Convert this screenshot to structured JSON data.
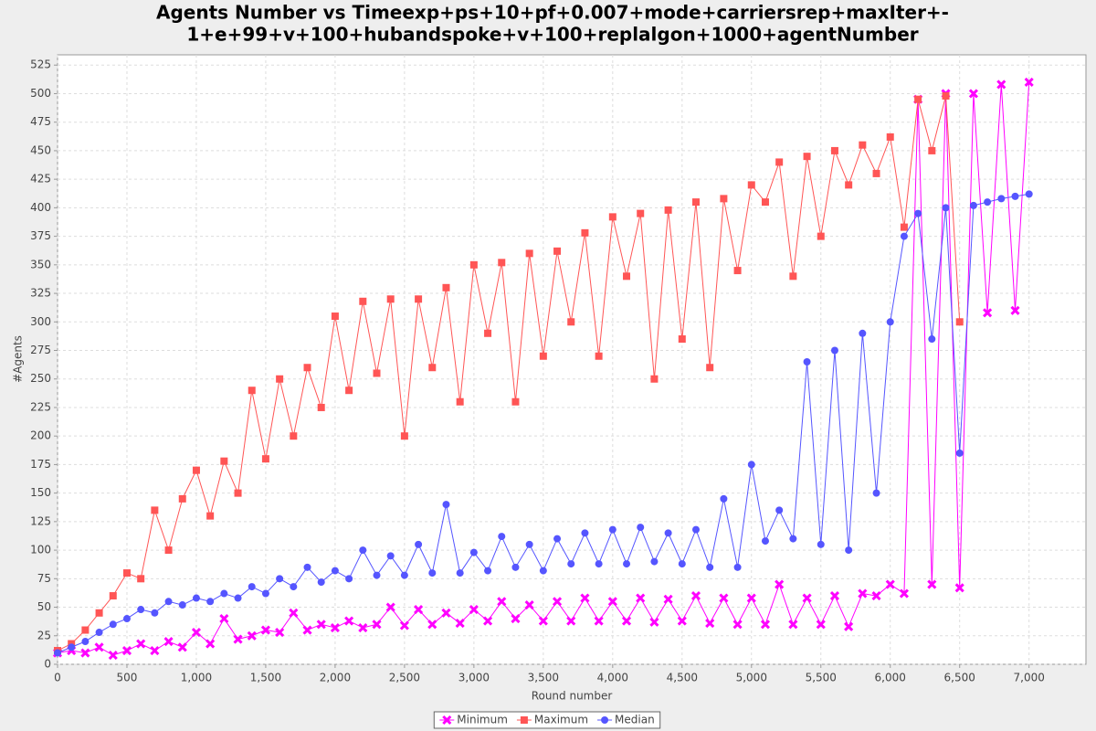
{
  "chart_data": {
    "type": "line",
    "title": [
      "Agents Number vs Timeexp+ps+10+pf+0.007+mode+carriersrep+maxIter+-",
      "1+e+99+v+100+hubandspoke+v+100+replalgon+1000+agentNumber"
    ],
    "x_label": "Round number",
    "y_label": "#Agents",
    "xlim": [
      0,
      7410
    ],
    "ylim": [
      0,
      534
    ],
    "xticks": [
      0,
      500,
      {
        "value": 1000,
        "label": "1,000"
      },
      {
        "value": 1500,
        "label": "1,500"
      },
      {
        "value": 2000,
        "label": "2,000"
      },
      {
        "value": 2500,
        "label": "2,500"
      },
      {
        "value": 3000,
        "label": "3,000"
      },
      {
        "value": 3500,
        "label": "3,500"
      },
      {
        "value": 4000,
        "label": "4,000"
      },
      {
        "value": 4500,
        "label": "4,500"
      },
      {
        "value": 5000,
        "label": "5,000"
      },
      {
        "value": 5500,
        "label": "5,500"
      },
      {
        "value": 6000,
        "label": "6,000"
      },
      {
        "value": 6500,
        "label": "6,500"
      },
      {
        "value": 7000,
        "label": "7,000"
      }
    ],
    "yticks": [
      0,
      25,
      50,
      75,
      100,
      125,
      150,
      175,
      200,
      225,
      250,
      275,
      300,
      325,
      350,
      375,
      400,
      425,
      450,
      475,
      500,
      525
    ],
    "grid": true,
    "legend": "bottom",
    "x": [
      0,
      100,
      200,
      300,
      400,
      500,
      600,
      700,
      800,
      900,
      1000,
      1100,
      1200,
      1300,
      1400,
      1500,
      1600,
      1700,
      1800,
      1900,
      2000,
      2100,
      2200,
      2300,
      2400,
      2500,
      2600,
      2700,
      2800,
      2900,
      3000,
      3100,
      3200,
      3300,
      3400,
      3500,
      3600,
      3700,
      3800,
      3900,
      4000,
      4100,
      4200,
      4300,
      4400,
      4500,
      4600,
      4700,
      4800,
      4900,
      5000,
      5100,
      5200,
      5300,
      5400,
      5500,
      5600,
      5700,
      5800,
      5900,
      6000,
      6100,
      6200,
      6300,
      6400,
      6500,
      6600,
      6700,
      6800,
      6900,
      7000
    ],
    "series": [
      {
        "name": "Minimum",
        "color": "#ff00ff",
        "marker": "cross",
        "values": [
          10,
          12,
          10,
          15,
          8,
          12,
          18,
          12,
          20,
          15,
          28,
          18,
          40,
          22,
          25,
          30,
          28,
          45,
          30,
          35,
          32,
          38,
          32,
          35,
          50,
          34,
          48,
          35,
          45,
          36,
          48,
          38,
          55,
          40,
          52,
          38,
          55,
          38,
          58,
          38,
          55,
          38,
          58,
          37,
          57,
          38,
          60,
          36,
          58,
          35,
          58,
          35,
          70,
          35,
          58,
          35,
          60,
          33,
          62,
          60,
          70,
          62,
          495,
          70,
          500,
          67,
          500,
          308,
          508,
          310,
          510
        ]
      },
      {
        "name": "Maximum",
        "color": "#ff5555",
        "marker": "square",
        "values": [
          12,
          18,
          30,
          45,
          60,
          80,
          75,
          135,
          100,
          145,
          170,
          130,
          178,
          150,
          240,
          180,
          250,
          200,
          260,
          225,
          305,
          240,
          318,
          255,
          320,
          200,
          320,
          260,
          330,
          230,
          350,
          290,
          352,
          230,
          360,
          270,
          362,
          300,
          378,
          270,
          392,
          340,
          395,
          250,
          398,
          285,
          405,
          260,
          408,
          345,
          420,
          405,
          440,
          340,
          445,
          375,
          450,
          420,
          455,
          430,
          462,
          383,
          495,
          450,
          498,
          300,
          null,
          null,
          null,
          null,
          null
        ]
      },
      {
        "name": "Median",
        "color": "#5555ff",
        "marker": "circle",
        "values": [
          10,
          15,
          20,
          28,
          35,
          40,
          48,
          45,
          55,
          52,
          58,
          55,
          62,
          58,
          68,
          62,
          75,
          68,
          85,
          72,
          82,
          75,
          100,
          78,
          95,
          78,
          105,
          80,
          140,
          80,
          98,
          82,
          112,
          85,
          105,
          82,
          110,
          88,
          115,
          88,
          118,
          88,
          120,
          90,
          115,
          88,
          118,
          85,
          145,
          85,
          175,
          108,
          135,
          110,
          265,
          105,
          275,
          100,
          290,
          150,
          300,
          375,
          395,
          285,
          400,
          185,
          402,
          405,
          408,
          410,
          412
        ]
      }
    ]
  }
}
